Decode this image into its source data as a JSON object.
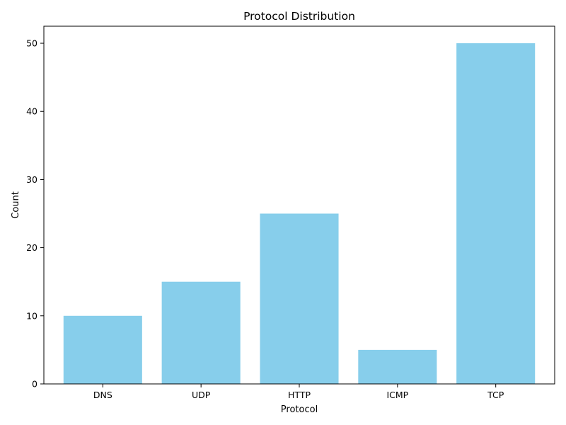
{
  "chart_data": {
    "type": "bar",
    "title": "Protocol Distribution",
    "xlabel": "Protocol",
    "ylabel": "Count",
    "categories": [
      "DNS",
      "UDP",
      "HTTP",
      "ICMP",
      "TCP"
    ],
    "values": [
      10,
      15,
      25,
      5,
      50
    ],
    "ylim": [
      0,
      52.5
    ],
    "yticks": [
      0,
      10,
      20,
      30,
      40,
      50
    ],
    "bar_color": "#87CEEB",
    "grid": false,
    "legend": "none"
  }
}
